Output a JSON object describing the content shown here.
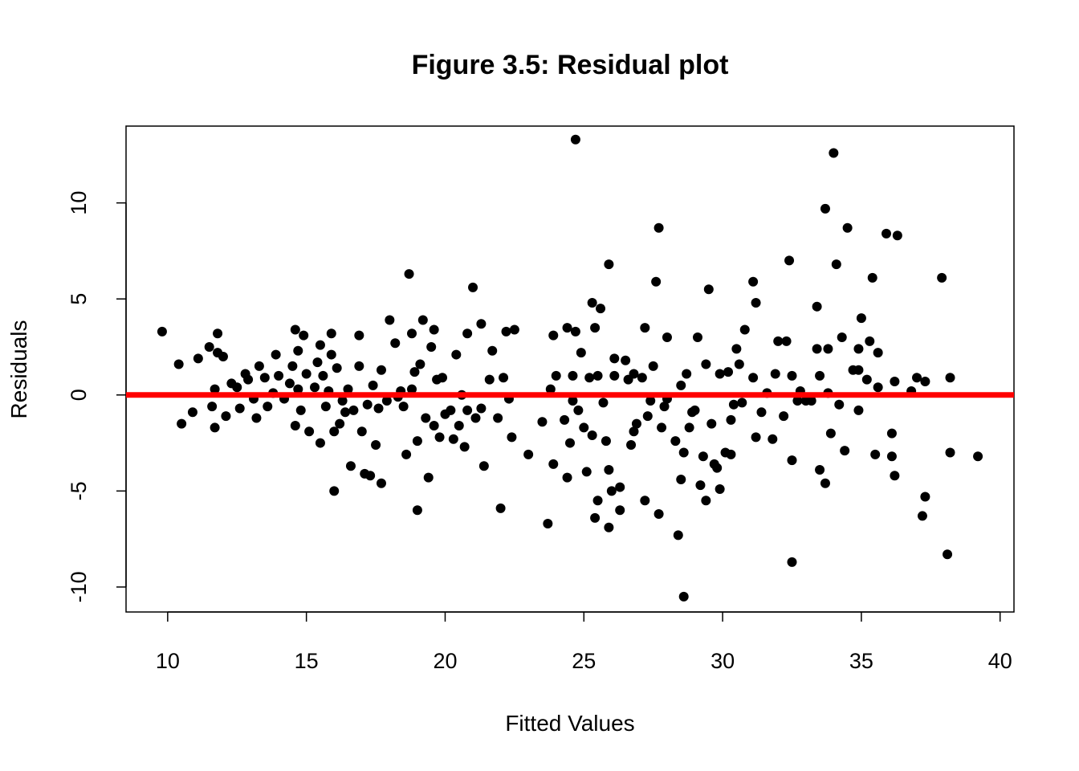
{
  "chart_data": {
    "type": "scatter",
    "title": "Figure 3.5: Residual plot",
    "xlabel": "Fitted Values",
    "ylabel": "Residuals",
    "xlim": [
      8.5,
      40.5
    ],
    "ylim": [
      -11.3,
      14.0
    ],
    "x_ticks": [
      10,
      15,
      20,
      25,
      30,
      35,
      40
    ],
    "y_ticks": [
      -10,
      -5,
      0,
      5,
      10
    ],
    "point_color": "#000000",
    "reference_line": {
      "y": 0,
      "color": "#ff0000"
    },
    "points": [
      [
        9.8,
        3.3
      ],
      [
        10.4,
        1.6
      ],
      [
        10.5,
        -1.5
      ],
      [
        10.9,
        -0.9
      ],
      [
        11.1,
        1.9
      ],
      [
        11.5,
        2.5
      ],
      [
        11.6,
        -0.6
      ],
      [
        11.7,
        0.3
      ],
      [
        11.7,
        -1.7
      ],
      [
        11.8,
        3.2
      ],
      [
        11.8,
        2.2
      ],
      [
        12.0,
        2.0
      ],
      [
        12.1,
        -1.1
      ],
      [
        12.3,
        0.6
      ],
      [
        12.5,
        0.4
      ],
      [
        12.6,
        -0.7
      ],
      [
        12.8,
        1.1
      ],
      [
        12.9,
        0.8
      ],
      [
        13.1,
        -0.2
      ],
      [
        13.2,
        -1.2
      ],
      [
        13.3,
        1.5
      ],
      [
        13.5,
        0.9
      ],
      [
        13.6,
        -0.6
      ],
      [
        13.8,
        0.1
      ],
      [
        13.9,
        2.1
      ],
      [
        14.0,
        1.0
      ],
      [
        14.2,
        -0.2
      ],
      [
        14.4,
        0.6
      ],
      [
        14.5,
        1.5
      ],
      [
        14.6,
        -1.6
      ],
      [
        14.6,
        3.4
      ],
      [
        14.7,
        0.3
      ],
      [
        14.7,
        2.3
      ],
      [
        14.8,
        -0.8
      ],
      [
        14.9,
        3.1
      ],
      [
        15.0,
        1.1
      ],
      [
        15.1,
        -1.9
      ],
      [
        15.3,
        0.4
      ],
      [
        15.4,
        1.7
      ],
      [
        15.5,
        -2.5
      ],
      [
        15.5,
        2.6
      ],
      [
        15.6,
        1.0
      ],
      [
        15.7,
        -0.6
      ],
      [
        15.8,
        0.2
      ],
      [
        15.9,
        2.1
      ],
      [
        15.9,
        3.2
      ],
      [
        16.0,
        -1.9
      ],
      [
        16.0,
        -5.0
      ],
      [
        16.1,
        1.4
      ],
      [
        16.2,
        -1.5
      ],
      [
        16.3,
        -0.3
      ],
      [
        16.4,
        -0.9
      ],
      [
        16.5,
        0.3
      ],
      [
        16.6,
        -3.7
      ],
      [
        16.7,
        -0.8
      ],
      [
        16.9,
        1.5
      ],
      [
        16.9,
        3.1
      ],
      [
        17.0,
        -1.9
      ],
      [
        17.1,
        -4.1
      ],
      [
        17.2,
        -0.5
      ],
      [
        17.3,
        -4.2
      ],
      [
        17.4,
        0.5
      ],
      [
        17.5,
        -2.6
      ],
      [
        17.6,
        -0.7
      ],
      [
        17.7,
        -4.6
      ],
      [
        17.7,
        1.3
      ],
      [
        17.9,
        -0.3
      ],
      [
        18.0,
        3.9
      ],
      [
        18.2,
        2.7
      ],
      [
        18.3,
        -0.1
      ],
      [
        18.4,
        0.2
      ],
      [
        18.5,
        -0.6
      ],
      [
        18.6,
        -3.1
      ],
      [
        18.7,
        6.3
      ],
      [
        18.8,
        3.2
      ],
      [
        18.8,
        0.3
      ],
      [
        18.9,
        1.2
      ],
      [
        19.0,
        -2.4
      ],
      [
        19.0,
        -6.0
      ],
      [
        19.1,
        1.6
      ],
      [
        19.2,
        3.9
      ],
      [
        19.3,
        -1.2
      ],
      [
        19.4,
        -4.3
      ],
      [
        19.5,
        2.5
      ],
      [
        19.6,
        -1.6
      ],
      [
        19.6,
        3.4
      ],
      [
        19.7,
        0.8
      ],
      [
        19.8,
        -2.2
      ],
      [
        19.9,
        0.9
      ],
      [
        20.0,
        -1.0
      ],
      [
        20.2,
        -0.8
      ],
      [
        20.3,
        -2.3
      ],
      [
        20.4,
        2.1
      ],
      [
        20.5,
        -1.6
      ],
      [
        20.6,
        0.0
      ],
      [
        20.7,
        -2.7
      ],
      [
        20.8,
        -0.8
      ],
      [
        20.8,
        3.2
      ],
      [
        21.0,
        5.6
      ],
      [
        21.1,
        -1.2
      ],
      [
        21.3,
        -0.7
      ],
      [
        21.3,
        3.7
      ],
      [
        21.4,
        -3.7
      ],
      [
        21.6,
        0.8
      ],
      [
        21.7,
        2.3
      ],
      [
        21.9,
        -1.2
      ],
      [
        22.0,
        -5.9
      ],
      [
        22.1,
        0.9
      ],
      [
        22.2,
        3.3
      ],
      [
        22.3,
        -0.2
      ],
      [
        22.4,
        -2.2
      ],
      [
        22.5,
        3.4
      ],
      [
        23.0,
        -3.1
      ],
      [
        23.5,
        -1.4
      ],
      [
        23.7,
        -6.7
      ],
      [
        23.8,
        0.3
      ],
      [
        23.9,
        -3.6
      ],
      [
        23.9,
        3.1
      ],
      [
        24.0,
        1.0
      ],
      [
        24.3,
        -1.3
      ],
      [
        24.4,
        -4.3
      ],
      [
        24.4,
        3.5
      ],
      [
        24.5,
        -2.5
      ],
      [
        24.6,
        -0.3
      ],
      [
        24.6,
        1.0
      ],
      [
        24.7,
        3.3
      ],
      [
        24.7,
        13.3
      ],
      [
        24.8,
        -0.8
      ],
      [
        24.9,
        2.2
      ],
      [
        25.0,
        -1.7
      ],
      [
        25.1,
        -4.0
      ],
      [
        25.2,
        0.9
      ],
      [
        25.3,
        -2.1
      ],
      [
        25.3,
        4.8
      ],
      [
        25.4,
        -6.4
      ],
      [
        25.4,
        3.5
      ],
      [
        25.5,
        -5.5
      ],
      [
        25.5,
        1.0
      ],
      [
        25.6,
        4.5
      ],
      [
        25.7,
        -0.4
      ],
      [
        25.8,
        -2.4
      ],
      [
        25.9,
        -6.9
      ],
      [
        25.9,
        -3.9
      ],
      [
        25.9,
        6.8
      ],
      [
        26.0,
        -5.0
      ],
      [
        26.1,
        1.0
      ],
      [
        26.1,
        1.9
      ],
      [
        26.3,
        -6.0
      ],
      [
        26.3,
        -4.8
      ],
      [
        26.5,
        1.8
      ],
      [
        26.6,
        0.8
      ],
      [
        26.7,
        -2.6
      ],
      [
        26.8,
        -1.9
      ],
      [
        26.8,
        1.1
      ],
      [
        26.9,
        -1.5
      ],
      [
        27.1,
        0.9
      ],
      [
        27.2,
        -5.5
      ],
      [
        27.2,
        3.5
      ],
      [
        27.3,
        -1.1
      ],
      [
        27.4,
        -0.3
      ],
      [
        27.5,
        1.5
      ],
      [
        27.6,
        5.9
      ],
      [
        27.7,
        -6.2
      ],
      [
        27.7,
        8.7
      ],
      [
        27.8,
        -1.7
      ],
      [
        27.9,
        -0.6
      ],
      [
        28.0,
        -0.2
      ],
      [
        28.0,
        3.0
      ],
      [
        28.3,
        -2.4
      ],
      [
        28.4,
        -7.3
      ],
      [
        28.5,
        -4.4
      ],
      [
        28.5,
        0.5
      ],
      [
        28.6,
        -3.0
      ],
      [
        28.6,
        -10.5
      ],
      [
        28.7,
        1.1
      ],
      [
        28.8,
        -1.7
      ],
      [
        28.9,
        -0.9
      ],
      [
        29.0,
        -0.8
      ],
      [
        29.1,
        3.0
      ],
      [
        29.2,
        -4.7
      ],
      [
        29.3,
        -3.2
      ],
      [
        29.4,
        -5.5
      ],
      [
        29.4,
        1.6
      ],
      [
        29.5,
        5.5
      ],
      [
        29.6,
        -1.5
      ],
      [
        29.7,
        -3.6
      ],
      [
        29.8,
        -3.8
      ],
      [
        29.9,
        -4.9
      ],
      [
        29.9,
        1.1
      ],
      [
        30.1,
        -3.0
      ],
      [
        30.2,
        1.2
      ],
      [
        30.3,
        -1.3
      ],
      [
        30.3,
        -3.1
      ],
      [
        30.4,
        -0.5
      ],
      [
        30.5,
        2.4
      ],
      [
        30.6,
        1.6
      ],
      [
        30.7,
        -0.4
      ],
      [
        30.8,
        3.4
      ],
      [
        31.1,
        5.9
      ],
      [
        31.1,
        0.9
      ],
      [
        31.2,
        -2.2
      ],
      [
        31.2,
        4.8
      ],
      [
        31.4,
        -0.9
      ],
      [
        31.6,
        0.1
      ],
      [
        31.8,
        -2.3
      ],
      [
        31.9,
        1.1
      ],
      [
        32.0,
        2.8
      ],
      [
        32.2,
        -1.1
      ],
      [
        32.3,
        2.8
      ],
      [
        32.4,
        7.0
      ],
      [
        32.5,
        -3.4
      ],
      [
        32.5,
        -8.7
      ],
      [
        32.5,
        1.0
      ],
      [
        32.7,
        -0.3
      ],
      [
        32.8,
        0.2
      ],
      [
        33.0,
        -0.3
      ],
      [
        33.2,
        -0.3
      ],
      [
        33.4,
        2.4
      ],
      [
        33.4,
        4.6
      ],
      [
        33.5,
        -3.9
      ],
      [
        33.5,
        1.0
      ],
      [
        33.7,
        -4.6
      ],
      [
        33.7,
        9.7
      ],
      [
        33.8,
        2.4
      ],
      [
        33.8,
        0.1
      ],
      [
        33.9,
        -2.0
      ],
      [
        34.0,
        12.6
      ],
      [
        34.1,
        6.8
      ],
      [
        34.2,
        -0.5
      ],
      [
        34.3,
        3.0
      ],
      [
        34.4,
        -2.9
      ],
      [
        34.5,
        8.7
      ],
      [
        34.7,
        1.3
      ],
      [
        34.9,
        1.3
      ],
      [
        34.9,
        2.4
      ],
      [
        34.9,
        -0.8
      ],
      [
        35.0,
        4.0
      ],
      [
        35.2,
        0.8
      ],
      [
        35.3,
        2.8
      ],
      [
        35.4,
        6.1
      ],
      [
        35.5,
        -3.1
      ],
      [
        35.6,
        2.2
      ],
      [
        35.6,
        0.4
      ],
      [
        35.9,
        8.4
      ],
      [
        36.1,
        -2.0
      ],
      [
        36.1,
        -3.2
      ],
      [
        36.2,
        -4.2
      ],
      [
        36.2,
        0.7
      ],
      [
        36.3,
        8.3
      ],
      [
        36.8,
        0.2
      ],
      [
        37.0,
        0.9
      ],
      [
        37.2,
        -6.3
      ],
      [
        37.3,
        -5.3
      ],
      [
        37.3,
        0.7
      ],
      [
        37.9,
        6.1
      ],
      [
        38.1,
        -8.3
      ],
      [
        38.2,
        -3.0
      ],
      [
        38.2,
        0.9
      ],
      [
        39.2,
        -3.2
      ]
    ]
  }
}
